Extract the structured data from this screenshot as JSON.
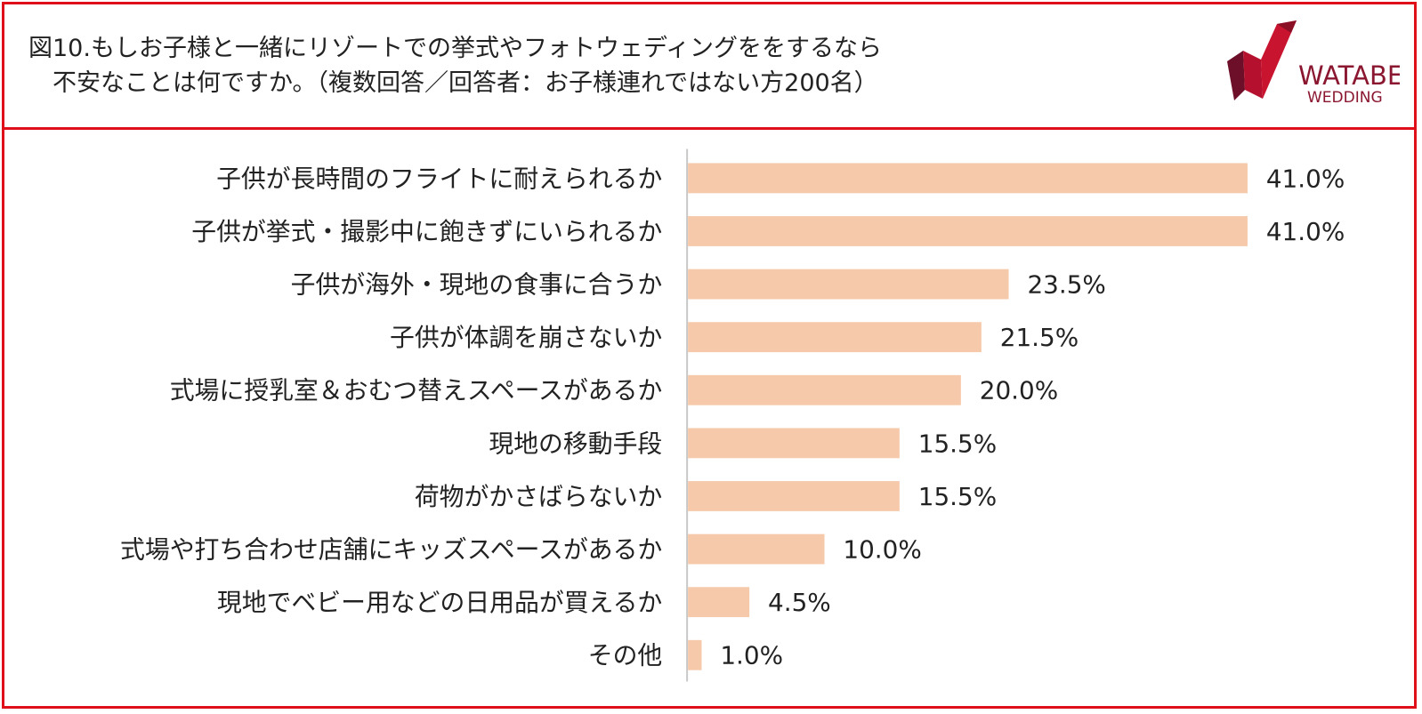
{
  "title_lines": [
    "図10.もしお子様と一緒にリゾートでの挙式やフォトウェディングををするなら",
    "　不安なことは何ですか。（複数回答／回答者：お子様連れではない方200名）"
  ],
  "logo": {
    "line1": "WATABE",
    "line2": "WEDDING"
  },
  "colors": {
    "frame": "#e0101a",
    "bar": "#f6c9aa",
    "logo_primary": "#b5102e",
    "logo_dark": "#6e0f2a"
  },
  "chart_data": {
    "type": "bar",
    "orientation": "horizontal",
    "categories": [
      "子供が長時間のフライトに耐えられるか",
      "子供が挙式・撮影中に飽きずにいられるか",
      "子供が海外・現地の食事に合うか",
      "子供が体調を崩さないか",
      "式場に授乳室＆おむつ替えスペースがあるか",
      "現地の移動手段",
      "荷物がかさばらないか",
      "式場や打ち合わせ店舗にキッズスペースがあるか",
      "現地でベビー用などの日用品が買えるか",
      "その他"
    ],
    "values": [
      41.0,
      41.0,
      23.5,
      21.5,
      20.0,
      15.5,
      15.5,
      10.0,
      4.5,
      1.0
    ],
    "value_labels": [
      "41.0%",
      "41.0%",
      "23.5%",
      "21.5%",
      "20.0%",
      "15.5%",
      "15.5%",
      "10.0%",
      "4.5%",
      "1.0%"
    ],
    "xlim": [
      0,
      41.0
    ],
    "grid": false,
    "legend": "none"
  }
}
